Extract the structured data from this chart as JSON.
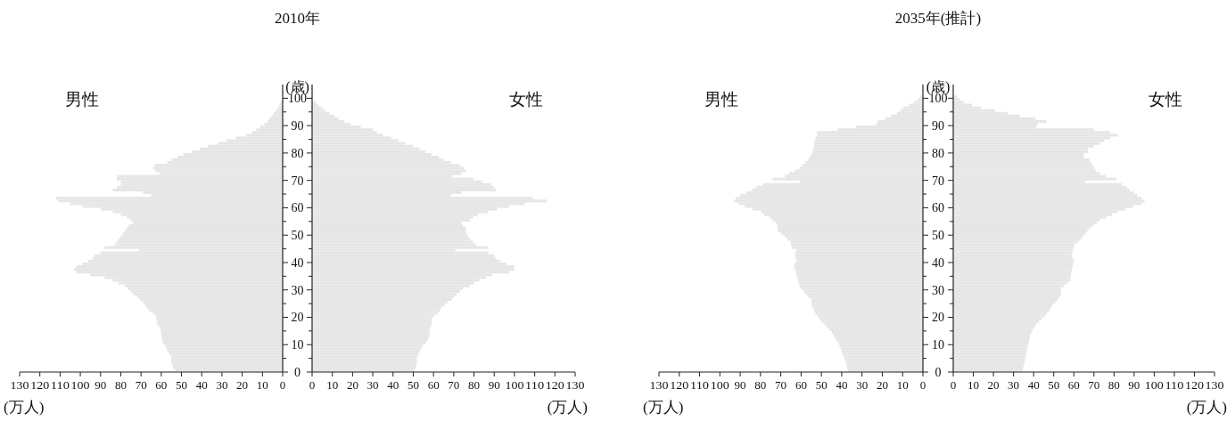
{
  "chart_data": [
    {
      "type": "bar",
      "orientation": "horizontal",
      "title": "2010年",
      "ylabel": "(歳)",
      "xlabel": "(万人)",
      "xlim": [
        130,
        0
      ],
      "xticks": [
        130,
        120,
        110,
        100,
        90,
        80,
        70,
        60,
        50,
        40,
        30,
        20,
        10,
        0
      ],
      "ylim": [
        0,
        105
      ],
      "yticks": [
        0,
        {
          "value": 5,
          "label": null
        },
        10,
        {
          "value": 15,
          "label": null
        },
        20,
        {
          "value": 25,
          "label": null
        },
        30,
        {
          "value": 35,
          "label": null
        },
        40,
        {
          "value": 45,
          "label": null
        },
        50,
        {
          "value": 55,
          "label": null
        },
        60,
        {
          "value": 65,
          "label": null
        },
        70,
        {
          "value": 75,
          "label": null
        },
        80,
        {
          "value": 85,
          "label": null
        },
        90,
        {
          "value": 95,
          "label": null
        },
        100
      ],
      "x": [
        0,
        1,
        2,
        3,
        4,
        5,
        6,
        7,
        8,
        9,
        10,
        11,
        12,
        13,
        14,
        15,
        16,
        17,
        18,
        19,
        20,
        21,
        22,
        23,
        24,
        25,
        26,
        27,
        28,
        29,
        30,
        31,
        32,
        33,
        34,
        35,
        36,
        37,
        38,
        39,
        40,
        41,
        42,
        43,
        44,
        45,
        46,
        47,
        48,
        49,
        50,
        51,
        52,
        53,
        54,
        55,
        56,
        57,
        58,
        59,
        60,
        61,
        62,
        63,
        64,
        65,
        66,
        67,
        68,
        69,
        70,
        71,
        72,
        73,
        74,
        75,
        76,
        77,
        78,
        79,
        80,
        81,
        82,
        83,
        84,
        85,
        86,
        87,
        88,
        89,
        90,
        91,
        92,
        93,
        94,
        95,
        96,
        97,
        98
      ],
      "series": [
        {
          "name": "男性",
          "color": "#e6e6e6",
          "values": [
            53,
            54,
            54.5,
            55,
            55,
            55,
            56,
            57,
            57.5,
            58,
            59,
            59.5,
            59.7,
            60,
            60,
            60.4,
            61,
            62,
            62,
            62.5,
            62.6,
            64,
            66,
            67,
            68,
            69,
            70.7,
            72,
            74,
            75,
            76.6,
            78,
            81,
            84,
            88,
            95,
            102,
            103,
            102,
            99,
            96,
            94,
            93,
            90,
            71,
            88,
            83,
            82,
            81,
            80,
            79,
            78,
            77,
            76,
            74,
            75,
            77,
            80,
            84,
            90,
            99,
            105,
            111,
            112,
            65,
            69,
            84,
            82,
            80,
            80,
            82,
            82,
            61,
            63,
            64,
            63,
            57,
            55,
            52,
            49,
            45,
            41,
            37,
            32,
            28,
            23,
            18,
            15,
            13,
            11,
            9,
            7.5,
            6.6,
            5.5,
            4.4,
            3.2,
            2.2,
            1.6,
            1
          ]
        }
      ]
    },
    {
      "type": "bar",
      "orientation": "horizontal",
      "xlabel": "(万人)",
      "tick_labels": "x",
      "xlim": [
        0,
        130
      ],
      "xticks": [
        0,
        10,
        20,
        30,
        40,
        50,
        60,
        70,
        80,
        90,
        100,
        110,
        120,
        130
      ],
      "ylim": [
        0,
        105
      ],
      "yticks": [
        0,
        {
          "value": 5,
          "label": null
        },
        10,
        {
          "value": 15,
          "label": null
        },
        20,
        {
          "value": 25,
          "label": null
        },
        30,
        {
          "value": 35,
          "label": null
        },
        40,
        {
          "value": 45,
          "label": null
        },
        50,
        {
          "value": 55,
          "label": null
        },
        60,
        {
          "value": 65,
          "label": null
        },
        70,
        {
          "value": 75,
          "label": null
        },
        80,
        {
          "value": 85,
          "label": null
        },
        90,
        {
          "value": 95,
          "label": null
        },
        100
      ],
      "x": [
        0,
        1,
        2,
        3,
        4,
        5,
        6,
        7,
        8,
        9,
        10,
        11,
        12,
        13,
        14,
        15,
        16,
        17,
        18,
        19,
        20,
        21,
        22,
        23,
        24,
        25,
        26,
        27,
        28,
        29,
        30,
        31,
        32,
        33,
        34,
        35,
        36,
        37,
        38,
        39,
        40,
        41,
        42,
        43,
        44,
        45,
        46,
        47,
        48,
        49,
        50,
        51,
        52,
        53,
        54,
        55,
        56,
        57,
        58,
        59,
        60,
        61,
        62,
        63,
        64,
        65,
        66,
        67,
        68,
        69,
        70,
        71,
        72,
        73,
        74,
        75,
        76,
        77,
        78,
        79,
        80,
        81,
        82,
        83,
        84,
        85,
        86,
        87,
        88,
        89,
        90,
        91,
        92,
        93,
        94,
        95,
        96,
        97,
        98
      ],
      "series": [
        {
          "name": "女性",
          "color": "#e6e6e6",
          "values": [
            50.8,
            51,
            51.5,
            51.8,
            51.8,
            51.8,
            52.5,
            53,
            54,
            54.5,
            56,
            57,
            57.5,
            58,
            58,
            58,
            58.5,
            59,
            59,
            59,
            60.4,
            62,
            63,
            64,
            65.6,
            67,
            69,
            70,
            71.5,
            73,
            74.5,
            78,
            80,
            82.6,
            86,
            89,
            97.4,
            100,
            99.7,
            96,
            93,
            91,
            90,
            87,
            70.8,
            87,
            81,
            79.6,
            78,
            77,
            76.4,
            76,
            76,
            74.5,
            73.7,
            78,
            79.6,
            82,
            87,
            91.5,
            97.4,
            105,
            116,
            109,
            68.6,
            73.7,
            90.8,
            90,
            88.5,
            84,
            79.6,
            69.3,
            73.7,
            76,
            75,
            72.9,
            68.6,
            65,
            62.6,
            59,
            56,
            53,
            50,
            46,
            42.6,
            39,
            35,
            32,
            30,
            24,
            19,
            16,
            13,
            11,
            8.6,
            6.5,
            4.9,
            3,
            1.9
          ]
        }
      ]
    },
    {
      "type": "bar",
      "orientation": "horizontal",
      "title": "2035年(推計)",
      "ylabel": "(歳)",
      "xlabel": "(万人)",
      "xlim": [
        130,
        0
      ],
      "xticks": [
        130,
        120,
        110,
        100,
        90,
        80,
        70,
        60,
        50,
        40,
        30,
        20,
        10,
        0
      ],
      "ylim": [
        0,
        105
      ],
      "yticks": [
        0,
        {
          "value": 5,
          "label": null
        },
        10,
        {
          "value": 15,
          "label": null
        },
        20,
        {
          "value": 25,
          "label": null
        },
        30,
        {
          "value": 35,
          "label": null
        },
        40,
        {
          "value": 45,
          "label": null
        },
        50,
        {
          "value": 55,
          "label": null
        },
        60,
        {
          "value": 65,
          "label": null
        },
        70,
        {
          "value": 75,
          "label": null
        },
        80,
        {
          "value": 85,
          "label": null
        },
        90,
        {
          "value": 95,
          "label": null
        },
        100
      ],
      "x": [
        0,
        1,
        2,
        3,
        4,
        5,
        6,
        7,
        8,
        9,
        10,
        11,
        12,
        13,
        14,
        15,
        16,
        17,
        18,
        19,
        20,
        21,
        22,
        23,
        24,
        25,
        26,
        27,
        28,
        29,
        30,
        31,
        32,
        33,
        34,
        35,
        36,
        37,
        38,
        39,
        40,
        41,
        42,
        43,
        44,
        45,
        46,
        47,
        48,
        49,
        50,
        51,
        52,
        53,
        54,
        55,
        56,
        57,
        58,
        59,
        60,
        61,
        62,
        63,
        64,
        65,
        66,
        67,
        68,
        69,
        70,
        71,
        72,
        73,
        74,
        75,
        76,
        77,
        78,
        79,
        80,
        81,
        82,
        83,
        84,
        85,
        86,
        87,
        88,
        89,
        90,
        91,
        92,
        93,
        94,
        95,
        96,
        97,
        98,
        99,
        100
      ],
      "series": [
        {
          "name": "男性",
          "color": "#e6e6e6",
          "values": [
            36.8,
            37.2,
            37.6,
            38,
            38.5,
            39,
            39.5,
            40,
            40.5,
            41,
            41.6,
            42.5,
            43.4,
            44,
            44.8,
            46.3,
            47.5,
            48.5,
            50,
            51,
            52,
            53,
            53.6,
            54.3,
            55,
            55,
            55,
            56.5,
            57.5,
            58.7,
            60,
            60.8,
            61.2,
            61.6,
            62,
            62.3,
            62.6,
            63,
            63.5,
            63,
            62.3,
            62.8,
            63,
            62.8,
            62.3,
            64.5,
            65,
            65.2,
            66.7,
            68,
            69.6,
            71.5,
            71.6,
            71.8,
            72.5,
            74,
            75.4,
            78.3,
            79.8,
            84,
            87.8,
            90.7,
            92.9,
            92,
            90,
            87,
            84,
            82,
            79,
            60.8,
            74,
            68,
            66,
            63,
            60.8,
            59.4,
            58,
            56.5,
            55.7,
            55,
            54.3,
            54,
            53.6,
            53.5,
            53.3,
            52.8,
            52,
            52.4,
            42,
            33,
            23,
            22.3,
            18.6,
            15.7,
            12.8,
            11,
            9.6,
            7,
            4.4,
            2.5,
            1.3
          ]
        }
      ]
    },
    {
      "type": "bar",
      "orientation": "horizontal",
      "xlabel": "(万人)",
      "tick_labels": "x",
      "xlim": [
        0,
        130
      ],
      "xticks": [
        0,
        10,
        20,
        30,
        40,
        50,
        60,
        70,
        80,
        90,
        100,
        110,
        120,
        130
      ],
      "ylim": [
        0,
        105
      ],
      "yticks": [
        0,
        {
          "value": 5,
          "label": null
        },
        10,
        {
          "value": 15,
          "label": null
        },
        20,
        {
          "value": 25,
          "label": null
        },
        30,
        {
          "value": 35,
          "label": null
        },
        40,
        {
          "value": 45,
          "label": null
        },
        50,
        {
          "value": 55,
          "label": null
        },
        60,
        {
          "value": 65,
          "label": null
        },
        70,
        {
          "value": 75,
          "label": null
        },
        80,
        {
          "value": 85,
          "label": null
        },
        90,
        {
          "value": 95,
          "label": null
        },
        100
      ],
      "x": [
        0,
        1,
        2,
        3,
        4,
        5,
        6,
        7,
        8,
        9,
        10,
        11,
        12,
        13,
        14,
        15,
        16,
        17,
        18,
        19,
        20,
        21,
        22,
        23,
        24,
        25,
        26,
        27,
        28,
        29,
        30,
        31,
        32,
        33,
        34,
        35,
        36,
        37,
        38,
        39,
        40,
        41,
        42,
        43,
        44,
        45,
        46,
        47,
        48,
        49,
        50,
        51,
        52,
        53,
        54,
        55,
        56,
        57,
        58,
        59,
        60,
        61,
        62,
        63,
        64,
        65,
        66,
        67,
        68,
        69,
        70,
        71,
        72,
        73,
        74,
        75,
        76,
        77,
        78,
        79,
        80,
        81,
        82,
        83,
        84,
        85,
        86,
        87,
        88,
        89,
        90,
        91,
        92,
        93,
        94,
        95,
        96,
        97,
        98,
        99,
        100
      ],
      "series": [
        {
          "name": "女性",
          "color": "#e6e6e6",
          "values": [
            34.5,
            34.8,
            35.2,
            35.5,
            35.8,
            36,
            36.2,
            36.5,
            36.7,
            37,
            37.5,
            37.7,
            38,
            38.2,
            39,
            39.7,
            40.5,
            41.2,
            42.6,
            44,
            45.6,
            46.7,
            47.8,
            48.5,
            49.3,
            50.8,
            52,
            53,
            53.7,
            53.7,
            53.7,
            55.2,
            56.7,
            58.2,
            58.4,
            58.5,
            58.8,
            59,
            59.4,
            59.7,
            60,
            59.5,
            59,
            59.2,
            59.4,
            60,
            60.4,
            61.9,
            63.4,
            64.5,
            65.6,
            66.7,
            67.8,
            69.6,
            71.5,
            73,
            76,
            78.9,
            81.9,
            85.6,
            89.3,
            93.7,
            95.2,
            93.7,
            91.5,
            90,
            87.8,
            86.3,
            84,
            65.6,
            81.2,
            76,
            73,
            70.8,
            70,
            69.3,
            68.6,
            67.8,
            64.9,
            64.9,
            67,
            67,
            70,
            73,
            75.2,
            78,
            81.9,
            78,
            70,
            41.2,
            42,
            46.3,
            41,
            33,
            27,
            21,
            13.8,
            9.3,
            5.6,
            3.4,
            1.9
          ]
        }
      ]
    }
  ]
}
